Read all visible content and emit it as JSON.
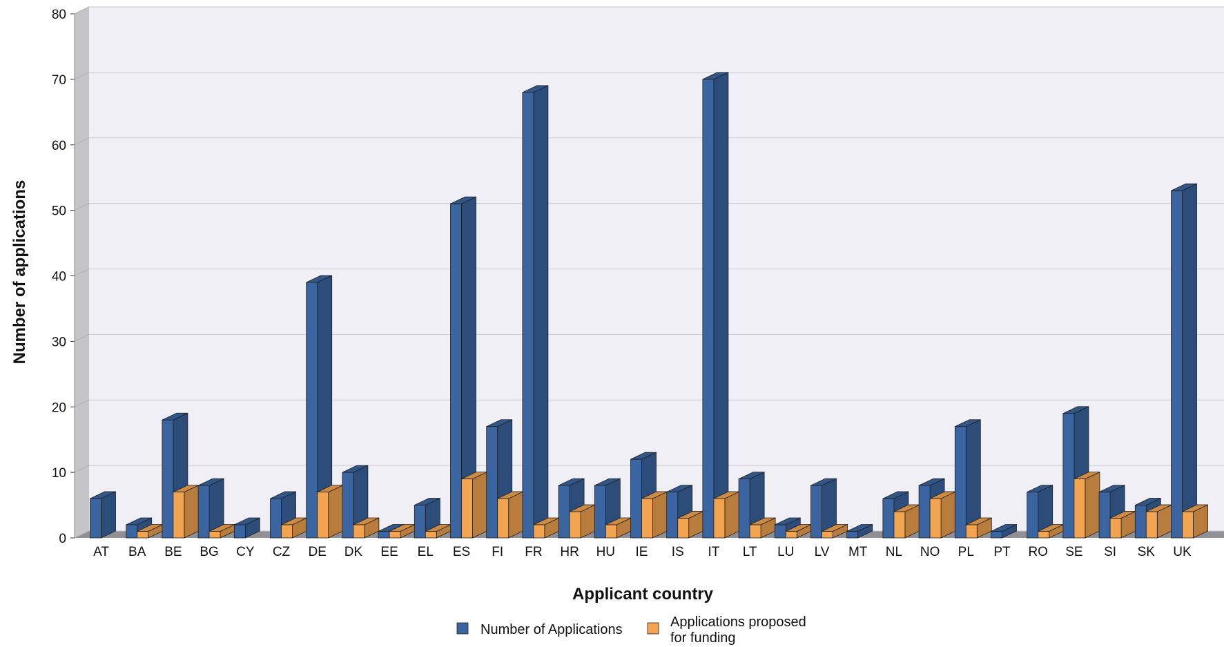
{
  "chart_data": {
    "type": "bar",
    "xlabel": "Applicant country",
    "ylabel": "Number of applications",
    "ylim": [
      0,
      80
    ],
    "yticks": [
      0,
      10,
      20,
      30,
      40,
      50,
      60,
      70,
      80
    ],
    "grid": true,
    "legend_position": "bottom",
    "categories": [
      "AT",
      "BA",
      "BE",
      "BG",
      "CY",
      "CZ",
      "DE",
      "DK",
      "EE",
      "EL",
      "ES",
      "FI",
      "FR",
      "HR",
      "HU",
      "IE",
      "IS",
      "IT",
      "LT",
      "LU",
      "LV",
      "MT",
      "NL",
      "NO",
      "PL",
      "PT",
      "RO",
      "SE",
      "SI",
      "SK",
      "UK"
    ],
    "series": [
      {
        "name": "Number of Applications",
        "color": "#3a65a0",
        "values": [
          6,
          2,
          18,
          8,
          2,
          6,
          39,
          10,
          1,
          5,
          51,
          17,
          68,
          8,
          8,
          12,
          7,
          70,
          9,
          2,
          8,
          1,
          6,
          8,
          17,
          1,
          7,
          19,
          7,
          5,
          53
        ]
      },
      {
        "name": "Applications proposed for funding",
        "name_lines": [
          "Applications proposed",
          "for funding"
        ],
        "color": "#f2a450",
        "values": [
          0,
          1,
          7,
          1,
          0,
          2,
          7,
          2,
          1,
          1,
          9,
          6,
          2,
          4,
          2,
          6,
          3,
          6,
          2,
          1,
          1,
          0,
          4,
          6,
          2,
          0,
          1,
          9,
          3,
          4,
          4
        ]
      }
    ]
  }
}
